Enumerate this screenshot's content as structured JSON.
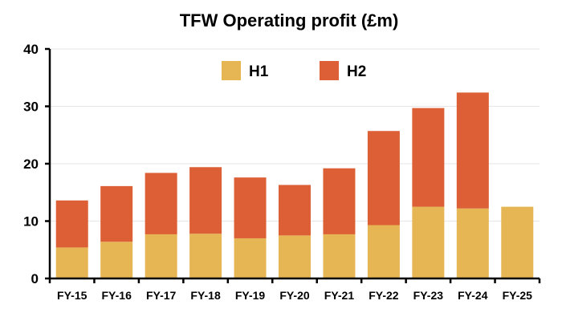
{
  "chart_data": {
    "type": "bar",
    "stacked": true,
    "title": "TFW Operating profit (£m)",
    "xlabel": "",
    "ylabel": "",
    "categories": [
      "FY-15",
      "FY-16",
      "FY-17",
      "FY-18",
      "FY-19",
      "FY-20",
      "FY-21",
      "FY-22",
      "FY-23",
      "FY-24",
      "FY-25"
    ],
    "series": [
      {
        "name": "H1",
        "color": "#e6b655",
        "values": [
          5.4,
          6.4,
          7.7,
          7.8,
          7.0,
          7.5,
          7.7,
          9.3,
          12.5,
          12.2,
          12.5
        ]
      },
      {
        "name": "H2",
        "color": "#dc5f35",
        "values": [
          8.2,
          9.7,
          10.7,
          11.6,
          10.6,
          8.8,
          11.5,
          16.4,
          17.2,
          20.2,
          0
        ]
      }
    ],
    "ylim": [
      0,
      40
    ],
    "yticks": [
      "0",
      "10",
      "20",
      "30",
      "40"
    ],
    "grid": true,
    "legend_position": "top-center"
  }
}
